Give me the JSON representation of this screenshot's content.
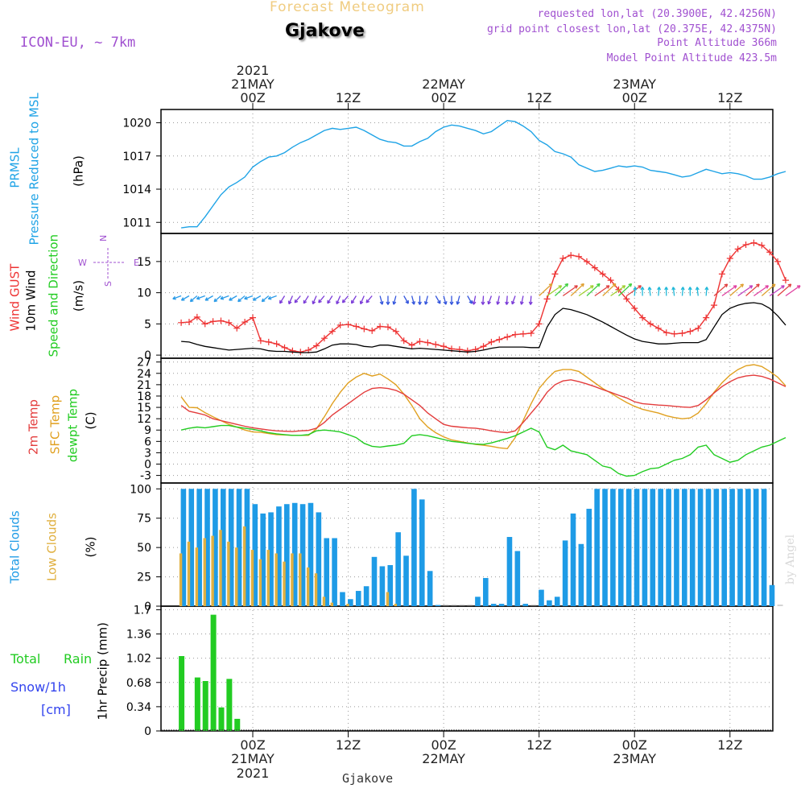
{
  "header": {
    "title": "Forecast Meteogram",
    "location": "Gjakove",
    "model": "ICON-EU, ~ 7km",
    "requested": "requested lon,lat (20.3900E, 42.4256N)",
    "grid": "grid point closest lon,lat (20.375E, 42.4375N)",
    "point_alt": "Point Altitude 366m",
    "model_alt": "Model Point Altitude 423.5m",
    "footer": "Gjakove",
    "watermark": "by Angel"
  },
  "time_axis": {
    "top_year": "2021",
    "ticks": [
      {
        "label": "00Z",
        "day": "21MAY",
        "year": "2021"
      },
      {
        "label": "12Z",
        "day": "",
        "year": ""
      },
      {
        "label": "00Z",
        "day": "22MAY",
        "year": ""
      },
      {
        "label": "12Z",
        "day": "",
        "year": ""
      },
      {
        "label": "00Z",
        "day": "23MAY",
        "year": ""
      },
      {
        "label": "12Z",
        "day": "",
        "year": ""
      }
    ]
  },
  "colors": {
    "pressure": "#1ea3e6",
    "gust": "#ee3333",
    "wind": "#000000",
    "temp2m": "#e33c3c",
    "sfc": "#e0a020",
    "dewpt": "#22cc22",
    "total_clouds": "#1e9be6",
    "low_clouds": "#e0b040",
    "rain": "#22cc22",
    "snow": "#3344ee",
    "purple": "#a050d0",
    "grid": "#999999"
  },
  "chart_data": [
    {
      "type": "line",
      "title": "PRMSL Pressure Reduced to MSL",
      "ylabel": "(hPa)",
      "ylim": [
        1010,
        1021.2
      ],
      "yticks": [
        1011,
        1014,
        1017,
        1020
      ],
      "x_hours_start": -9,
      "x_hours_step": 1,
      "series": [
        {
          "name": "PRMSL",
          "values": [
            1010.5,
            1010.6,
            1010.6,
            1011.5,
            1012.5,
            1013.5,
            1014.2,
            1014.6,
            1015.1,
            1016.0,
            1016.5,
            1016.9,
            1017.0,
            1017.3,
            1017.8,
            1018.2,
            1018.5,
            1018.9,
            1019.3,
            1019.5,
            1019.4,
            1019.5,
            1019.6,
            1019.3,
            1018.9,
            1018.5,
            1018.3,
            1018.2,
            1017.9,
            1017.9,
            1018.3,
            1018.6,
            1019.2,
            1019.6,
            1019.8,
            1019.7,
            1019.5,
            1019.3,
            1019.0,
            1019.2,
            1019.7,
            1020.2,
            1020.1,
            1019.7,
            1019.2,
            1018.4,
            1018.0,
            1017.4,
            1017.2,
            1016.9,
            1016.2,
            1015.9,
            1015.6,
            1015.7,
            1015.9,
            1016.1,
            1016.0,
            1016.1,
            1016.0,
            1015.7,
            1015.6,
            1015.5,
            1015.3,
            1015.1,
            1015.2,
            1015.5,
            1015.8,
            1015.6,
            1015.4,
            1015.5,
            1015.4,
            1015.2,
            1014.9,
            1014.9,
            1015.1,
            1015.4,
            1015.6
          ]
        }
      ]
    },
    {
      "type": "line",
      "title": "Wind GUST / 10m Wind Speed and Direction",
      "ylabel": "(m/s)",
      "ylim": [
        -0.5,
        19.5
      ],
      "yticks": [
        0,
        5,
        10,
        15
      ],
      "series": [
        {
          "name": "Wind GUST",
          "values": [
            5.2,
            5.3,
            6.1,
            5.0,
            5.4,
            5.5,
            5.2,
            4.3,
            5.3,
            6.0,
            2.3,
            2.1,
            1.8,
            1.2,
            0.7,
            0.5,
            0.8,
            1.5,
            2.7,
            3.8,
            4.8,
            4.9,
            4.6,
            4.2,
            3.9,
            4.6,
            4.5,
            3.8,
            2.3,
            1.6,
            2.2,
            2.0,
            1.7,
            1.4,
            1.0,
            0.9,
            0.7,
            0.9,
            1.4,
            2.1,
            2.5,
            2.9,
            3.3,
            3.4,
            3.5,
            5.0,
            9.0,
            13.0,
            15.5,
            16.0,
            15.8,
            15.0,
            14.0,
            13.0,
            12.0,
            10.5,
            9.0,
            7.5,
            6.0,
            5.0,
            4.3,
            3.6,
            3.4,
            3.5,
            3.8,
            4.3,
            6.0,
            8.0,
            13.0,
            15.5,
            17.0,
            17.7,
            18.0,
            17.6,
            16.5,
            15.0,
            12.0
          ]
        },
        {
          "name": "10m Wind",
          "values": [
            2.2,
            2.1,
            1.7,
            1.4,
            1.2,
            1.0,
            0.8,
            0.9,
            1.0,
            1.1,
            1.0,
            0.7,
            0.6,
            0.6,
            0.5,
            0.4,
            0.4,
            0.5,
            1.0,
            1.6,
            1.8,
            1.8,
            1.7,
            1.4,
            1.3,
            1.6,
            1.6,
            1.4,
            1.2,
            1.0,
            1.1,
            1.0,
            0.9,
            0.8,
            0.7,
            0.6,
            0.5,
            0.6,
            0.8,
            1.1,
            1.3,
            1.3,
            1.3,
            1.3,
            1.2,
            1.2,
            4.5,
            6.5,
            7.5,
            7.3,
            6.9,
            6.5,
            5.9,
            5.3,
            4.6,
            3.9,
            3.2,
            2.6,
            2.2,
            2.0,
            1.8,
            1.8,
            1.9,
            2.0,
            2.0,
            2.0,
            2.5,
            4.5,
            6.5,
            7.5,
            8.0,
            8.3,
            8.4,
            8.2,
            7.5,
            6.3,
            4.8
          ]
        }
      ]
    },
    {
      "type": "line",
      "title": "2m Temp / SFC Temp / dewpt Temp",
      "ylabel": "(C)",
      "ylim": [
        -5,
        28
      ],
      "yticks": [
        -3,
        0,
        3,
        6,
        9,
        12,
        15,
        18,
        21,
        24,
        27
      ],
      "series": [
        {
          "name": "2m Temp",
          "values": [
            15.5,
            14.0,
            13.5,
            13.0,
            12.0,
            11.5,
            11.0,
            10.5,
            10.0,
            9.6,
            9.3,
            9.0,
            8.8,
            8.7,
            8.6,
            8.8,
            8.9,
            9.5,
            11.0,
            13.0,
            14.5,
            16.0,
            17.5,
            19.0,
            20.0,
            20.2,
            20.0,
            19.5,
            18.5,
            17.0,
            15.5,
            13.5,
            12.0,
            10.5,
            10.0,
            9.8,
            9.6,
            9.5,
            9.2,
            8.8,
            8.5,
            8.3,
            8.8,
            11.0,
            13.5,
            16.0,
            19.0,
            21.0,
            22.0,
            22.3,
            21.8,
            21.2,
            20.5,
            19.7,
            19.0,
            18.2,
            17.5,
            16.5,
            16.0,
            15.8,
            15.6,
            15.5,
            15.3,
            15.1,
            15.0,
            15.5,
            17.0,
            18.8,
            20.5,
            21.8,
            22.8,
            23.3,
            23.5,
            23.2,
            22.5,
            21.5,
            20.5
          ]
        },
        {
          "name": "SFC Temp",
          "values": [
            17.8,
            15.0,
            14.9,
            13.6,
            12.5,
            11.5,
            10.5,
            9.8,
            9.0,
            8.5,
            8.4,
            8.1,
            7.8,
            7.7,
            7.6,
            7.6,
            7.6,
            9.3,
            12.5,
            16.0,
            19.0,
            21.5,
            23.0,
            24.0,
            23.3,
            23.8,
            22.5,
            21.0,
            18.5,
            15.5,
            12.0,
            9.8,
            8.3,
            7.2,
            6.4,
            6.0,
            5.6,
            5.2,
            5.0,
            4.7,
            4.3,
            4.1,
            7.0,
            11.5,
            16.0,
            20.0,
            22.5,
            24.5,
            25.0,
            25.0,
            24.5,
            23.0,
            21.5,
            20.0,
            18.8,
            17.5,
            16.3,
            15.3,
            14.5,
            14.0,
            13.5,
            12.8,
            12.3,
            12.0,
            12.2,
            13.5,
            16.0,
            19.0,
            21.5,
            23.5,
            25.0,
            26.0,
            26.3,
            25.8,
            24.5,
            23.0,
            20.7
          ]
        },
        {
          "name": "dewpt Temp",
          "values": [
            9.0,
            9.5,
            9.8,
            9.6,
            9.9,
            10.2,
            10.2,
            9.8,
            9.5,
            9.2,
            8.8,
            8.3,
            8.0,
            7.8,
            7.6,
            7.6,
            7.8,
            8.8,
            9.0,
            8.8,
            8.5,
            7.8,
            7.0,
            5.5,
            4.7,
            4.5,
            4.8,
            5.0,
            5.5,
            7.5,
            7.8,
            7.5,
            7.0,
            6.5,
            6.0,
            5.8,
            5.5,
            5.3,
            5.2,
            5.6,
            6.2,
            6.8,
            7.5,
            8.5,
            9.5,
            8.5,
            4.5,
            3.8,
            5.0,
            3.5,
            3.0,
            2.5,
            1.0,
            -0.5,
            -1.0,
            -2.5,
            -3.2,
            -3.0,
            -2.0,
            -1.2,
            -1.0,
            0.0,
            1.0,
            1.5,
            2.5,
            4.5,
            5.0,
            2.5,
            1.5,
            0.5,
            1.0,
            2.5,
            3.5,
            4.5,
            5.0,
            6.0,
            7.0
          ]
        }
      ]
    },
    {
      "type": "bar",
      "title": "Total Clouds / Low Clouds",
      "ylabel": "(%)",
      "ylim": [
        0,
        105
      ],
      "yticks": [
        0,
        25,
        50,
        75,
        100
      ],
      "series": [
        {
          "name": "Total Clouds",
          "values": [
            100,
            100,
            100,
            100,
            100,
            100,
            100,
            100,
            100,
            87,
            79,
            80,
            85,
            87,
            88,
            87,
            88,
            80,
            58,
            58,
            12,
            6,
            13,
            17,
            42,
            34,
            35,
            63,
            43,
            100,
            91,
            30,
            1,
            0,
            0,
            0,
            0,
            8,
            24,
            2,
            2,
            59,
            47,
            2,
            0,
            14,
            5,
            8,
            56,
            79,
            53,
            83,
            100,
            100,
            100,
            100,
            100,
            100,
            100,
            100,
            100,
            100,
            100,
            100,
            100,
            100,
            100,
            100,
            100,
            100,
            100,
            100,
            100,
            100,
            18,
            0
          ]
        },
        {
          "name": "Low Clouds",
          "values": [
            45,
            55,
            50,
            58,
            60,
            65,
            55,
            50,
            68,
            48,
            40,
            48,
            45,
            38,
            45,
            45,
            33,
            28,
            8,
            3,
            0,
            2,
            0,
            0,
            0,
            0,
            12,
            2,
            0,
            0,
            0,
            0,
            0,
            0,
            0,
            0,
            0,
            0,
            0,
            0,
            0,
            0,
            0,
            0,
            0,
            0,
            0,
            0,
            0,
            0,
            0,
            0,
            0,
            0,
            0,
            0,
            0,
            0,
            0,
            0,
            0,
            0,
            0,
            0,
            0,
            0,
            0,
            0,
            0,
            0,
            0,
            0,
            0,
            0,
            0,
            0
          ]
        }
      ]
    },
    {
      "type": "bar",
      "title": "Total Rain / Snow/1h [cm]",
      "ylabel": "1hr Precip (mm)",
      "ylim": [
        0,
        1.75
      ],
      "yticks": [
        "0",
        "0.34",
        "0.68",
        "1.02",
        "1.36",
        "1.7"
      ],
      "series": [
        {
          "name": "Total Rain",
          "values": [
            1.05,
            0,
            0.75,
            0.7,
            1.63,
            0.33,
            0.73,
            0.17,
            0,
            0,
            0,
            0,
            0,
            0,
            0,
            0,
            0,
            0,
            0,
            0,
            0,
            0,
            0,
            0,
            0,
            0,
            0,
            0,
            0,
            0,
            0,
            0,
            0,
            0,
            0,
            0,
            0,
            0,
            0,
            0,
            0,
            0,
            0,
            0,
            0,
            0,
            0,
            0,
            0,
            0,
            0,
            0,
            0,
            0,
            0,
            0,
            0,
            0,
            0,
            0,
            0,
            0,
            0,
            0,
            0,
            0,
            0,
            0,
            0,
            0,
            0,
            0,
            0,
            0,
            0,
            0
          ]
        }
      ]
    }
  ],
  "labels": {
    "p1": {
      "line1": "PRMSL",
      "line2": "Pressure Reduced to MSL",
      "unit": "(hPa)"
    },
    "p2": {
      "line1": "Wind GUST",
      "line2": "10m Wind",
      "line3": "Speed and Direction",
      "unit": "(m/s)",
      "compass": "N",
      "compass_s": "S",
      "compass_w": "W",
      "compass_e": "E"
    },
    "p3": {
      "line1": "2m Temp",
      "line2": "SFC Temp",
      "line3": "dewpt Temp",
      "unit": "(C)"
    },
    "p4": {
      "line1": "Total Clouds",
      "line2": "Low Clouds",
      "unit": "(%)"
    },
    "p5": {
      "line1": "Total",
      "line1b": "Rain",
      "line2": "Snow/1h",
      "line3": "[cm]",
      "unit": "1hr Precip (mm)"
    }
  }
}
